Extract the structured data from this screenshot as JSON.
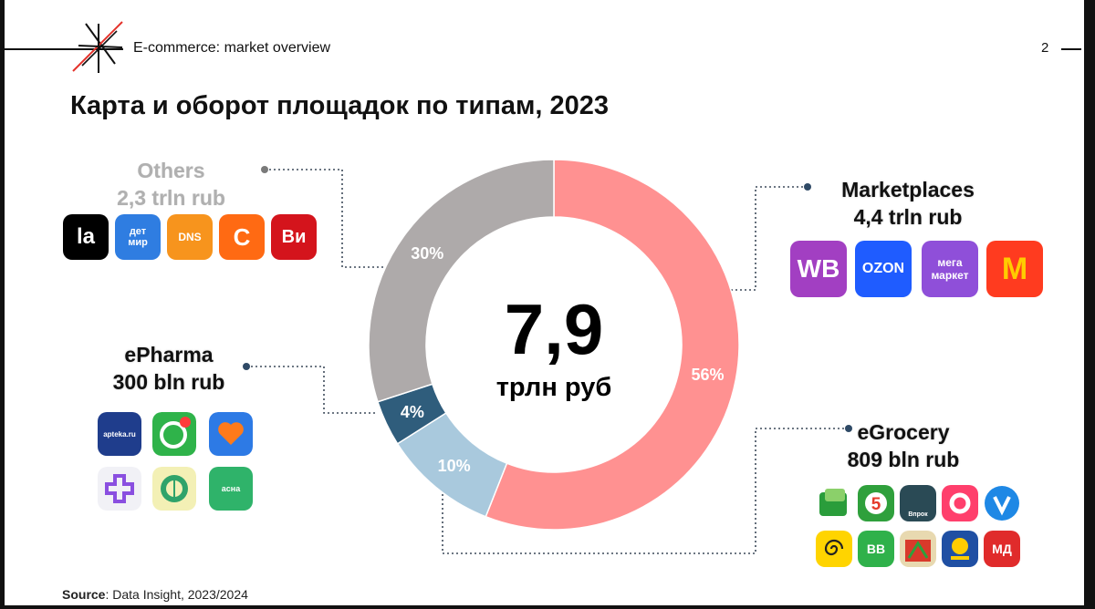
{
  "header": {
    "title": "E-commerce: market overview",
    "page_number": "2"
  },
  "main_title": "Карта и оборот площадок по типам, 2023",
  "center": {
    "value": "7,9",
    "unit": "трлн руб"
  },
  "segments": {
    "others": {
      "name": "Others",
      "amount": "2,3 trln rub"
    },
    "marketplaces": {
      "name": "Marketplaces",
      "amount": "4,4 trln rub"
    },
    "epharma": {
      "name": "ePharma",
      "amount": "300 bln rub"
    },
    "egrocery": {
      "name": "eGrocery",
      "amount": "809 bln rub"
    }
  },
  "chart_data": {
    "type": "pie",
    "donut": true,
    "title": "Карта и оборот площадок по типам, 2023",
    "center_text": "7,9 трлн руб",
    "slices": [
      {
        "name": "Marketplaces",
        "value": 56,
        "label": "56%",
        "amount": "4,4 trln rub",
        "color": "#ff9191"
      },
      {
        "name": "eGrocery",
        "value": 10,
        "label": "10%",
        "amount": "809 bln rub",
        "color": "#a9c9dd"
      },
      {
        "name": "ePharma",
        "value": 4,
        "label": "4%",
        "amount": "300 bln rub",
        "color": "#2f5d7c"
      },
      {
        "name": "Others",
        "value": 30,
        "label": "30%",
        "amount": "2,3 trln rub",
        "color": "#aeaaaa"
      }
    ]
  },
  "icons": {
    "others": [
      {
        "name": "lamoda-icon",
        "text": "la",
        "bg": "#000000"
      },
      {
        "name": "detmir-icon",
        "text": "дет мир",
        "bg": "#2f7de1"
      },
      {
        "name": "dns-icon",
        "text": "DNS",
        "bg": "#f7941d"
      },
      {
        "name": "citilink-icon",
        "text": "С",
        "bg": "#ff6a13"
      },
      {
        "name": "vi-icon",
        "text": "Ви",
        "bg": "#d4141c"
      }
    ],
    "marketplaces": [
      {
        "name": "wildberries-icon",
        "text": "WB",
        "bg": "#a23fc2"
      },
      {
        "name": "ozon-icon",
        "text": "OZON",
        "bg": "#1f5cff"
      },
      {
        "name": "megamarket-icon",
        "text": "мега маркет",
        "bg": "#8f4fd9"
      },
      {
        "name": "yandex-market-icon",
        "text": "М",
        "bg": "#ff3b1f"
      }
    ],
    "epharma": [
      {
        "name": "apteka-ru-icon",
        "text": "apteka.ru",
        "bg": "#1f3d8c"
      },
      {
        "name": "eapteka-icon",
        "text": "",
        "bg": "#2fb34a"
      },
      {
        "name": "zdravcity-icon",
        "text": "",
        "bg": "#2d7ae5"
      },
      {
        "name": "plus-pharmacy-icon",
        "text": "",
        "bg": "#f1f1f6"
      },
      {
        "name": "gorzdrav-icon",
        "text": "",
        "bg": "#f3f0b5"
      },
      {
        "name": "asna-icon",
        "text": "асна",
        "bg": "#2fb36a"
      }
    ],
    "egrocery": [
      {
        "name": "perekrestok-icon",
        "text": "",
        "bg": "#2a9d3b"
      },
      {
        "name": "pyaterochka-icon",
        "text": "5",
        "bg": "#2fa03c"
      },
      {
        "name": "vprok-icon",
        "text": "Впрок",
        "bg": "#2a4a55"
      },
      {
        "name": "samokat-icon",
        "text": "",
        "bg": "#ff3f6c"
      },
      {
        "name": "vkusvill-icon",
        "text": "",
        "bg": "#1e88e5"
      },
      {
        "name": "lenta-icon",
        "text": "",
        "bg": "#ffd400"
      },
      {
        "name": "vkusvill-green-icon",
        "text": "BB",
        "bg": "#2fb14a"
      },
      {
        "name": "magnit-icon",
        "text": "",
        "bg": "#d93a2b"
      },
      {
        "name": "auchan-icon",
        "text": "",
        "bg": "#1f4fa3"
      },
      {
        "name": "magnit-delivery-icon",
        "text": "МД",
        "bg": "#e02b2b"
      }
    ]
  },
  "source": {
    "label": "Source",
    "text": ": Data Insight, 2023/2024"
  }
}
